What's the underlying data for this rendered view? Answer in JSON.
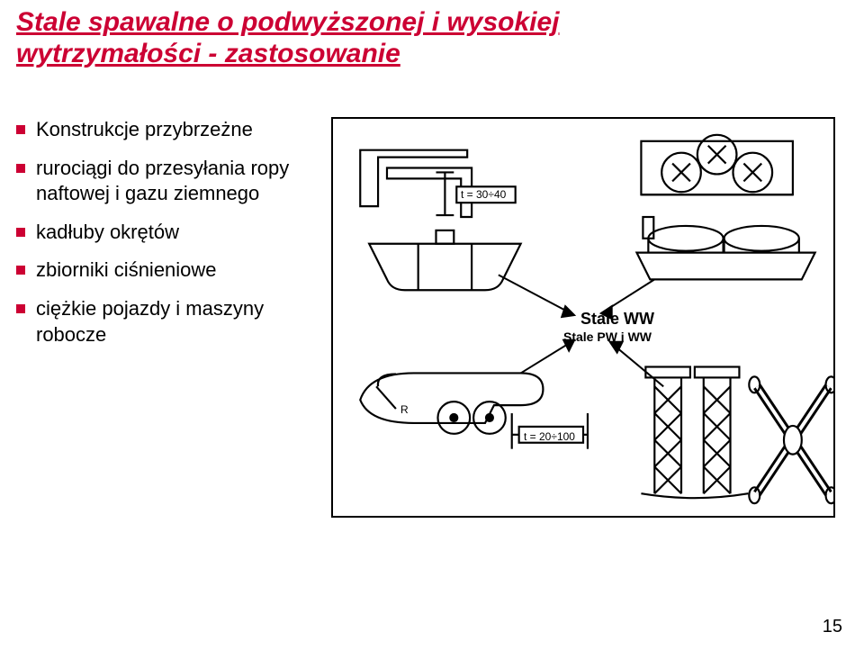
{
  "title": {
    "text": "Stale spawalne o podwyższonej i wysokiej wytrzymałości - zastosowanie",
    "color": "#cc0033",
    "fontSize": 30
  },
  "bullets": {
    "marker_color": "#cc0033",
    "text_color": "#000000",
    "items": [
      {
        "text": "Konstrukcje przybrzeżne"
      },
      {
        "text": "rurociągi do przesyłania ropy naftowej i gazu ziemnego"
      },
      {
        "text": "kadłuby okrętów"
      },
      {
        "text": "zbiorniki ciśnieniowe"
      },
      {
        "text": "ciężkie pojazdy i maszyny robocze"
      }
    ]
  },
  "figure": {
    "labels": {
      "label1": "Stale WW",
      "label2": "Stale PW i WW"
    },
    "dim1": "t = 30÷40",
    "dim2": "t = 20÷100",
    "stroke": "#000000",
    "stroke_width": 2
  },
  "page_number": "15"
}
